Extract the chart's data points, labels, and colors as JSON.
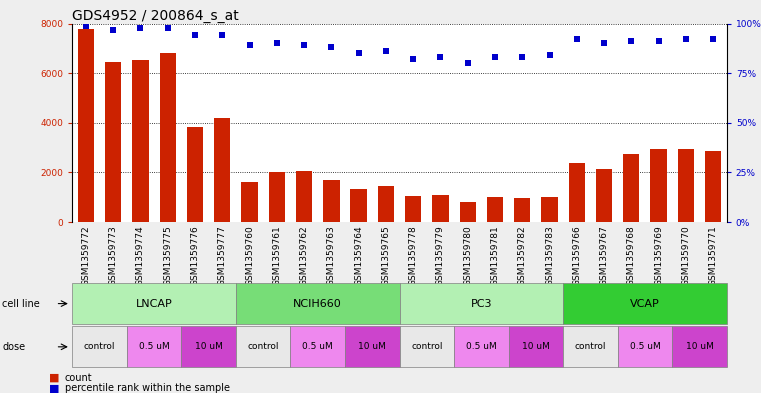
{
  "title": "GDS4952 / 200864_s_at",
  "samples": [
    "GSM1359772",
    "GSM1359773",
    "GSM1359774",
    "GSM1359775",
    "GSM1359776",
    "GSM1359777",
    "GSM1359760",
    "GSM1359761",
    "GSM1359762",
    "GSM1359763",
    "GSM1359764",
    "GSM1359765",
    "GSM1359778",
    "GSM1359779",
    "GSM1359780",
    "GSM1359781",
    "GSM1359782",
    "GSM1359783",
    "GSM1359766",
    "GSM1359767",
    "GSM1359768",
    "GSM1359769",
    "GSM1359770",
    "GSM1359771"
  ],
  "counts": [
    7800,
    6450,
    6550,
    6800,
    3850,
    4200,
    1600,
    2000,
    2050,
    1700,
    1350,
    1450,
    1050,
    1100,
    800,
    1000,
    950,
    1000,
    2400,
    2150,
    2750,
    2950,
    2950,
    2850
  ],
  "percentiles": [
    99,
    97,
    98,
    98,
    94,
    94,
    89,
    90,
    89,
    88,
    85,
    86,
    82,
    83,
    80,
    83,
    83,
    84,
    92,
    90,
    91,
    91,
    92,
    92
  ],
  "cell_lines": [
    {
      "name": "LNCAP",
      "start": 0,
      "end": 6,
      "color": "#b3f0b3"
    },
    {
      "name": "NCIH660",
      "start": 6,
      "end": 12,
      "color": "#77dd77"
    },
    {
      "name": "PC3",
      "start": 12,
      "end": 18,
      "color": "#b3f0b3"
    },
    {
      "name": "VCAP",
      "start": 18,
      "end": 24,
      "color": "#33cc33"
    }
  ],
  "doses": [
    {
      "name": "control",
      "start": 0,
      "end": 2,
      "color": "#e8e8e8"
    },
    {
      "name": "0.5 uM",
      "start": 2,
      "end": 4,
      "color": "#ee88ee"
    },
    {
      "name": "10 uM",
      "start": 4,
      "end": 6,
      "color": "#cc44cc"
    },
    {
      "name": "control",
      "start": 6,
      "end": 8,
      "color": "#e8e8e8"
    },
    {
      "name": "0.5 uM",
      "start": 8,
      "end": 10,
      "color": "#ee88ee"
    },
    {
      "name": "10 uM",
      "start": 10,
      "end": 12,
      "color": "#cc44cc"
    },
    {
      "name": "control",
      "start": 12,
      "end": 14,
      "color": "#e8e8e8"
    },
    {
      "name": "0.5 uM",
      "start": 14,
      "end": 16,
      "color": "#ee88ee"
    },
    {
      "name": "10 uM",
      "start": 16,
      "end": 18,
      "color": "#cc44cc"
    },
    {
      "name": "control",
      "start": 18,
      "end": 20,
      "color": "#e8e8e8"
    },
    {
      "name": "0.5 uM",
      "start": 20,
      "end": 22,
      "color": "#ee88ee"
    },
    {
      "name": "10 uM",
      "start": 22,
      "end": 24,
      "color": "#cc44cc"
    }
  ],
  "bar_color": "#cc2200",
  "dot_color": "#0000cc",
  "ylim_left": [
    0,
    8000
  ],
  "ylim_right": [
    0,
    100
  ],
  "yticks_left": [
    0,
    2000,
    4000,
    6000,
    8000
  ],
  "yticks_right": [
    0,
    25,
    50,
    75,
    100
  ],
  "ytick_labels_right": [
    "0%",
    "25%",
    "50%",
    "75%",
    "100%"
  ],
  "background_color": "#eeeeee",
  "plot_bg_color": "#ffffff",
  "title_fontsize": 10,
  "tick_fontsize": 6.5,
  "label_fontsize": 8
}
